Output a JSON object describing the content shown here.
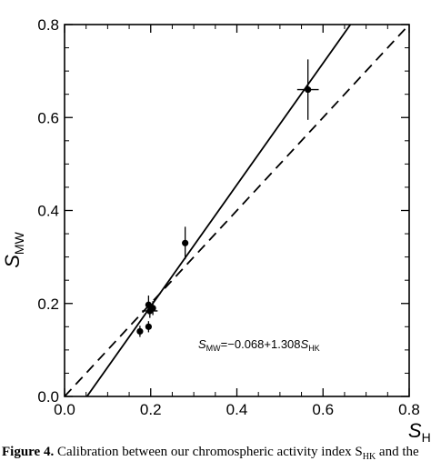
{
  "chart_data": {
    "type": "scatter",
    "xlabel_main": "S",
    "xlabel_sub": "HK",
    "ylabel_main": "S",
    "ylabel_sub": "MW",
    "xlim": [
      0.0,
      0.8
    ],
    "ylim": [
      0.0,
      0.8
    ],
    "xticks": [
      "0.0",
      "0.2",
      "0.4",
      "0.6",
      "0.8"
    ],
    "yticks": [
      "0.0",
      "0.2",
      "0.4",
      "0.6",
      "0.8"
    ],
    "grid": false,
    "points": [
      {
        "x": 0.565,
        "y": 0.66,
        "xerr": 0.025,
        "yerr": 0.065
      },
      {
        "x": 0.28,
        "y": 0.33,
        "xerr": 0.0,
        "yerr": 0.035
      },
      {
        "x": 0.195,
        "y": 0.197,
        "xerr": 0.0,
        "yerr": 0.02
      },
      {
        "x": 0.205,
        "y": 0.19,
        "xerr": 0.0,
        "yerr": 0.015
      },
      {
        "x": 0.198,
        "y": 0.184,
        "xerr": 0.018,
        "yerr": 0.015
      },
      {
        "x": 0.195,
        "y": 0.15,
        "xerr": 0.0,
        "yerr": 0.012
      },
      {
        "x": 0.175,
        "y": 0.14,
        "xerr": 0.0,
        "yerr": 0.012
      }
    ],
    "fit_line": {
      "intercept": -0.068,
      "slope": 1.308,
      "style": "solid"
    },
    "identity_line": {
      "intercept": 0.0,
      "slope": 1.0,
      "style": "dashed"
    },
    "annotation": {
      "prefix": "S",
      "prefix_sub": "MW",
      "body": "=−0.068+1.308",
      "suffix": "S",
      "suffix_sub": "HK"
    }
  },
  "caption": {
    "label": "Figure 4.",
    "text": " Calibration between our chromospheric activity index S",
    "sub": "HK",
    "tail": " and the"
  }
}
